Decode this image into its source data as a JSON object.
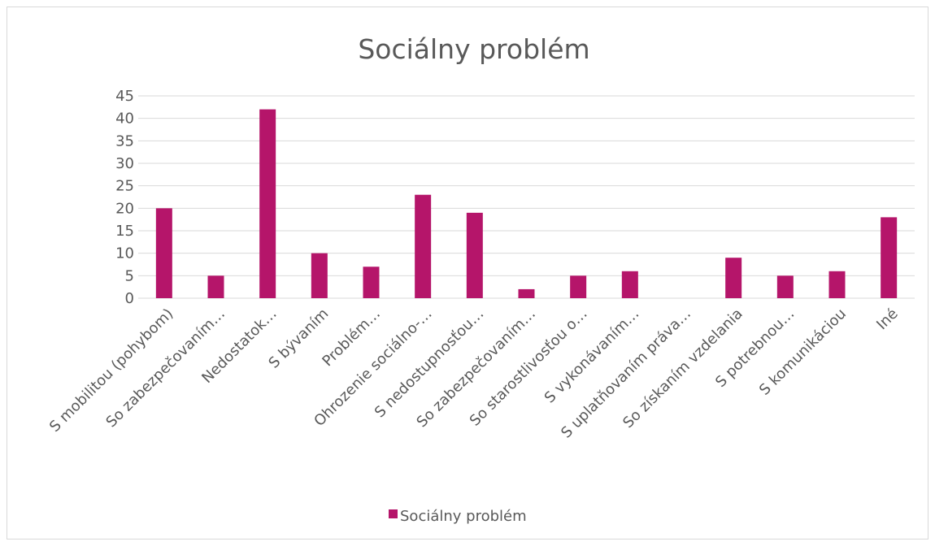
{
  "chart_data": {
    "type": "bar",
    "title": "Sociálny problém",
    "xlabel": "",
    "ylabel": "",
    "ylim": [
      0,
      45
    ],
    "ytick_step": 5,
    "yticks": [
      "0",
      "5",
      "10",
      "15",
      "20",
      "25",
      "30",
      "35",
      "40",
      "45"
    ],
    "grid": true,
    "legend_position": "bottom",
    "categories": [
      "S mobilitou (pohybom)",
      "So zabezpečovaním…",
      "Nedostatok…",
      "S bývaním",
      "Problém…",
      "Ohrozenie sociálno-…",
      "S nedostupnosťou…",
      "So zabezpečovaním…",
      "So starostlivosťou o…",
      "S vykonávaním…",
      "S uplatňovaním práva…",
      "So získaním vzdelania",
      "S potrebnou…",
      "S komunikáciou",
      "Iné"
    ],
    "series": [
      {
        "name": "Sociálny problém",
        "color": "#b5156a",
        "values": [
          20,
          5,
          42,
          10,
          7,
          23,
          19,
          2,
          5,
          6,
          0,
          9,
          5,
          6,
          18
        ]
      }
    ]
  }
}
